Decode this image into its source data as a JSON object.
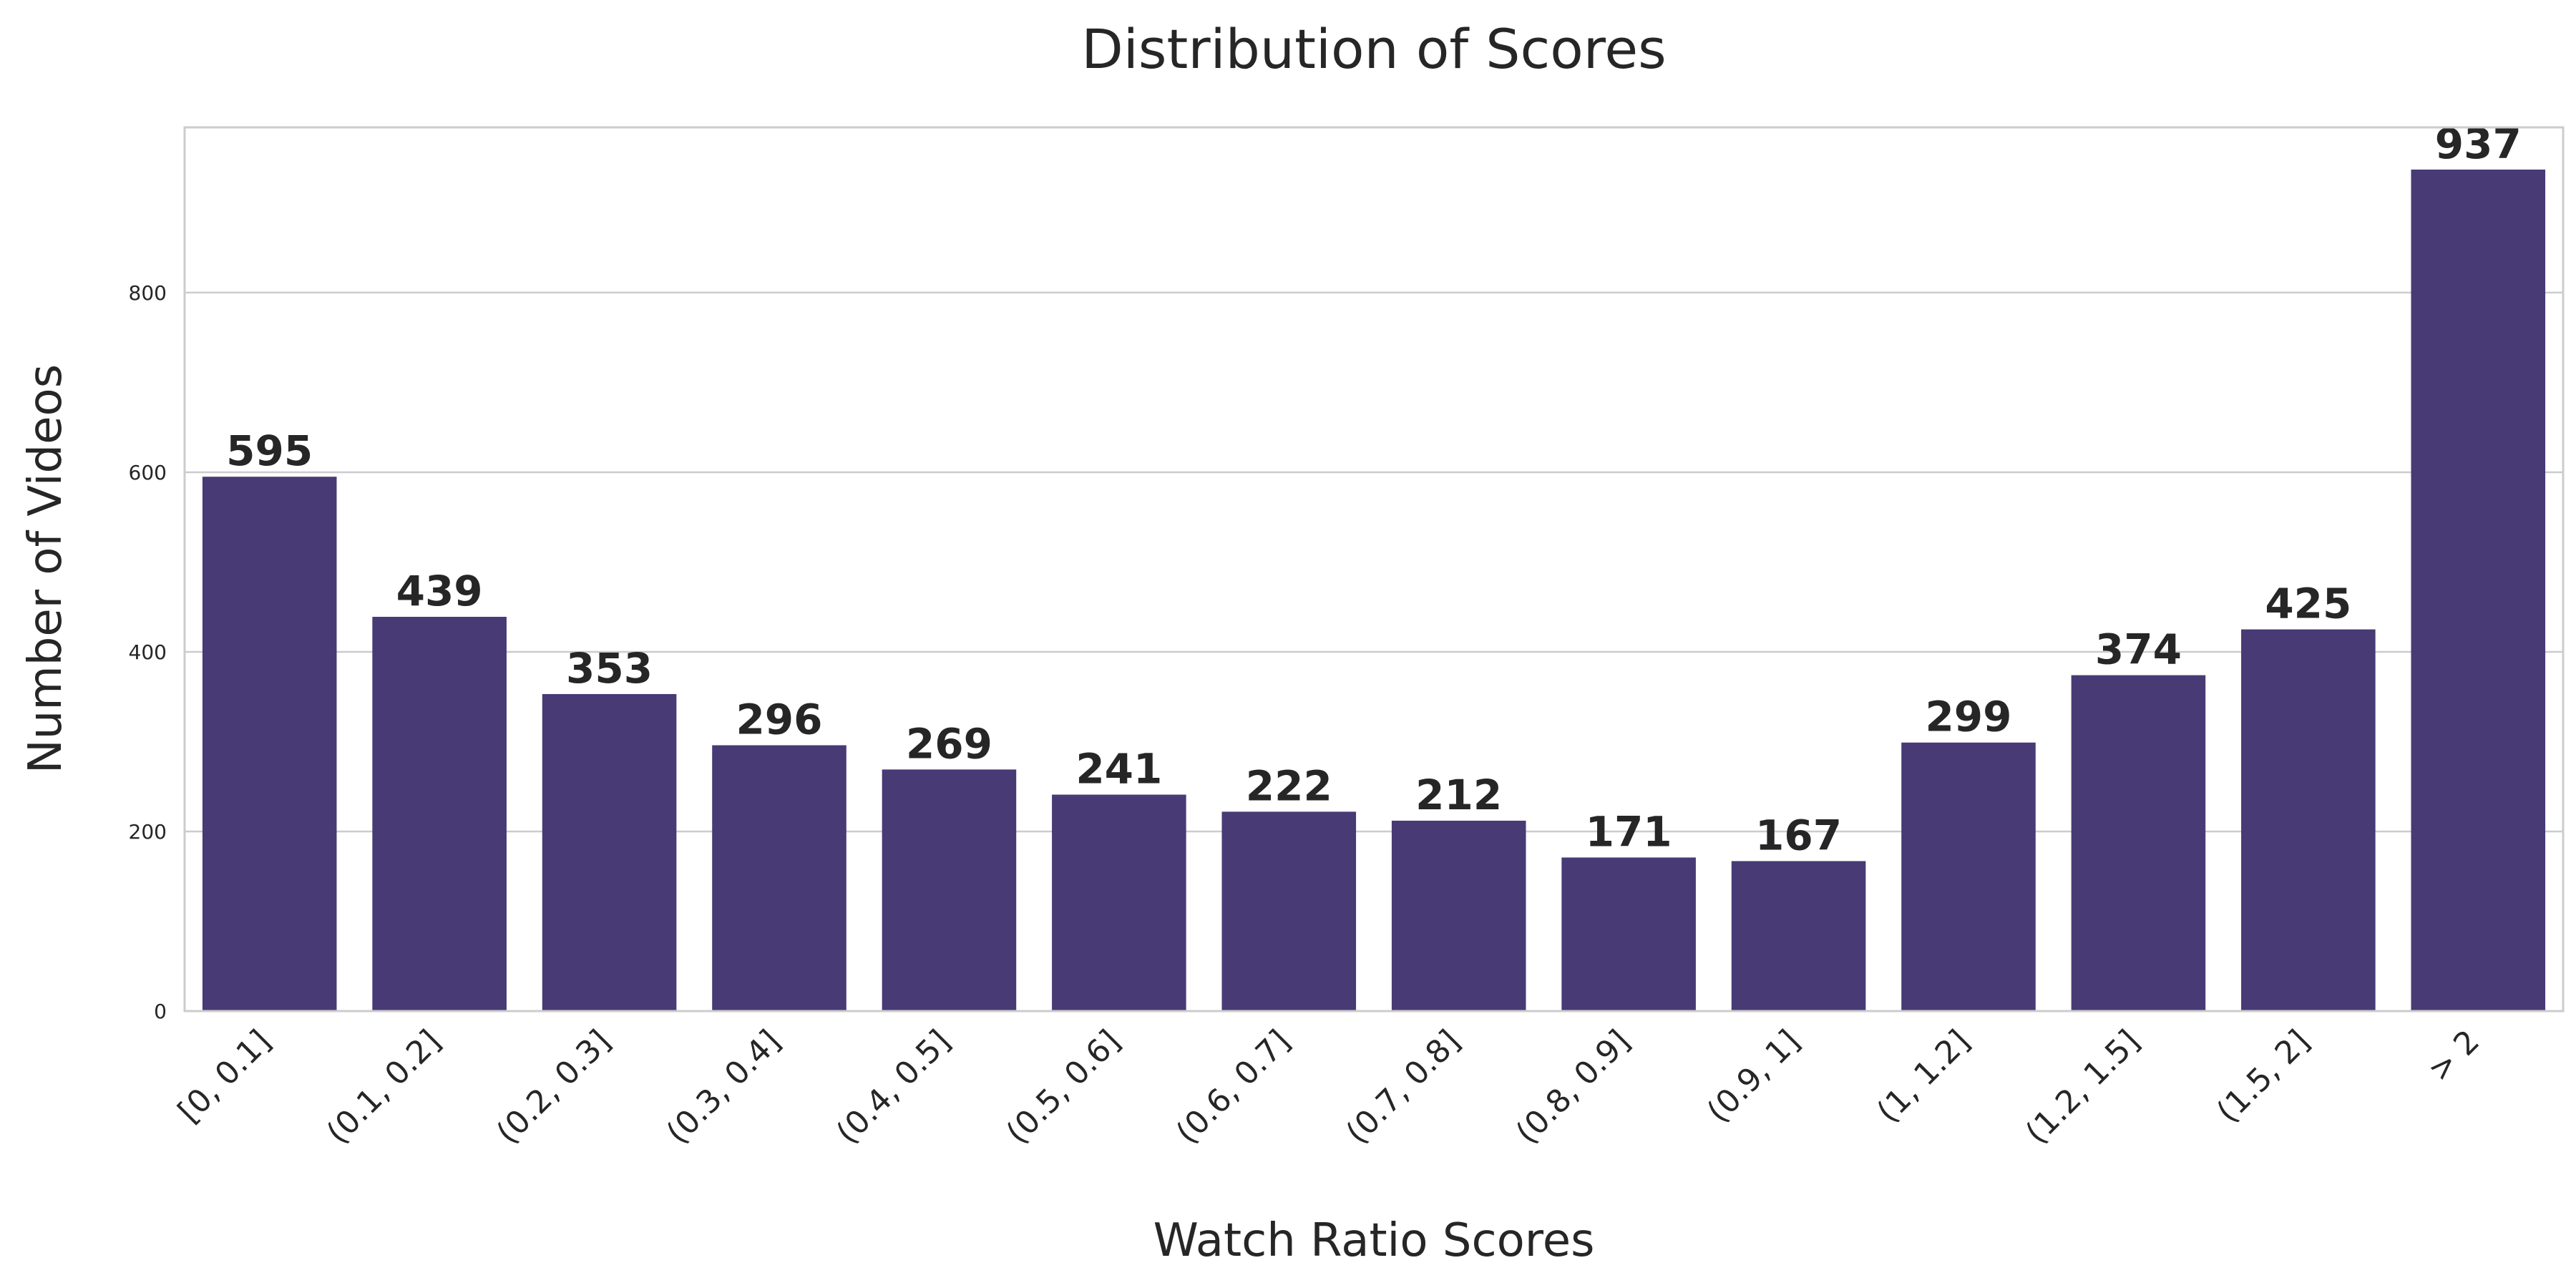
{
  "chart_data": {
    "type": "bar",
    "title": "Distribution of Scores",
    "xlabel": "Watch Ratio Scores",
    "ylabel": "Number of Videos",
    "categories": [
      "[0, 0.1]",
      "(0.1, 0.2]",
      "(0.2, 0.3]",
      "(0.3, 0.4]",
      "(0.4, 0.5]",
      "(0.5, 0.6]",
      "(0.6, 0.7]",
      "(0.7, 0.8]",
      "(0.8, 0.9]",
      "(0.9, 1]",
      "(1, 1.2]",
      "(1.2, 1.5]",
      "(1.5, 2]",
      "> 2"
    ],
    "values": [
      595,
      439,
      353,
      296,
      269,
      241,
      222,
      212,
      171,
      167,
      299,
      374,
      425,
      937
    ],
    "data_labels": [
      "595",
      "439",
      "353",
      "296",
      "269",
      "241",
      "222",
      "212",
      "171",
      "167",
      "299",
      "374",
      "425",
      "937"
    ],
    "ylim": [
      0,
      984
    ],
    "yticks": [
      0,
      200,
      400,
      600,
      800
    ],
    "ytick_labels": [
      "0",
      "200",
      "400",
      "600",
      "800"
    ],
    "grid": true,
    "grid_axis": "y",
    "legend": "none",
    "bar_color": "#483a75"
  }
}
